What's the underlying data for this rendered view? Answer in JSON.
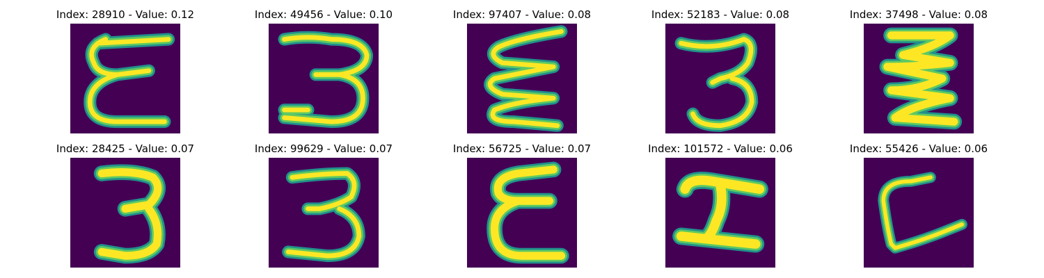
{
  "colors": {
    "background": "#440154",
    "stroke_outer": "#21918c",
    "stroke_mid": "#5ec962",
    "stroke_inner": "#fde725"
  },
  "panels": [
    {
      "title": "Index: 28910 - Value: 0.12",
      "glyph": "epsilon-flat"
    },
    {
      "title": "Index: 49456 - Value: 0.10",
      "glyph": "three-wide"
    },
    {
      "title": "Index: 97407 - Value: 0.08",
      "glyph": "wave-zigzag"
    },
    {
      "title": "Index: 52183 - Value: 0.08",
      "glyph": "three-narrow"
    },
    {
      "title": "Index: 37498 - Value: 0.08",
      "glyph": "zigzag-bold"
    },
    {
      "title": "Index: 28425 - Value: 0.07",
      "glyph": "three-bold"
    },
    {
      "title": "Index: 99629 - Value: 0.07",
      "glyph": "three-thin"
    },
    {
      "title": "Index: 56725 - Value: 0.07",
      "glyph": "epsilon-bold"
    },
    {
      "title": "Index: 101572 - Value: 0.06",
      "glyph": "i-beam"
    },
    {
      "title": "Index: 55426 - Value: 0.06",
      "glyph": "l-curve"
    }
  ]
}
